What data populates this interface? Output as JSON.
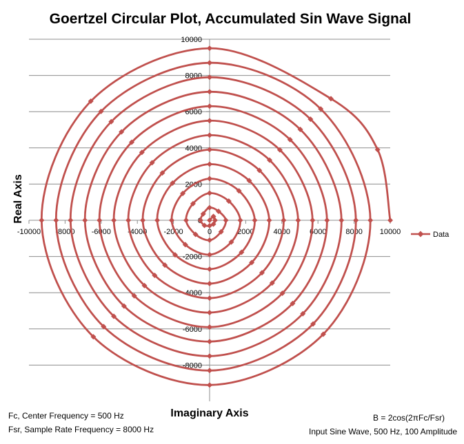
{
  "chart_data": {
    "type": "scatter",
    "title": "Goertzel Circular Plot, Accumulated Sin Wave Signal",
    "xlabel": "Imaginary Axis",
    "ylabel": "Real Axis",
    "xlim": [
      -10000,
      10000
    ],
    "ylim": [
      -10000,
      10000
    ],
    "x_ticks": [
      -10000,
      -8000,
      -6000,
      -4000,
      -2000,
      0,
      2000,
      4000,
      6000,
      8000,
      10000
    ],
    "y_ticks": [
      -8000,
      -6000,
      -4000,
      -2000,
      0,
      2000,
      4000,
      6000,
      8000,
      10000
    ],
    "grid": "horizontal",
    "legend_position": "right",
    "series": [
      {
        "name": "Data",
        "color": "#C0504D",
        "marker": "diamond",
        "points": [
          [
            0,
            0
          ],
          [
            212,
            212
          ],
          [
            300,
            0
          ],
          [
            212,
            -212
          ],
          [
            0,
            -300
          ],
          [
            -283,
            -283
          ],
          [
            -500,
            0
          ],
          [
            -354,
            354
          ],
          [
            0,
            700
          ],
          [
            495,
            495
          ],
          [
            900,
            0
          ],
          [
            636,
            -636
          ],
          [
            0,
            -1100
          ],
          [
            -778,
            -778
          ],
          [
            -1300,
            0
          ],
          [
            -919,
            919
          ],
          [
            0,
            1500
          ],
          [
            1061,
            1061
          ],
          [
            1700,
            0
          ],
          [
            1202,
            -1202
          ],
          [
            0,
            -1900
          ],
          [
            -1344,
            -1344
          ],
          [
            -2100,
            0
          ],
          [
            -1485,
            1485
          ],
          [
            0,
            2300
          ],
          [
            1626,
            1626
          ],
          [
            2500,
            0
          ],
          [
            1768,
            -1768
          ],
          [
            0,
            -2700
          ],
          [
            -1909,
            -1909
          ],
          [
            -2900,
            0
          ],
          [
            -2051,
            2051
          ],
          [
            0,
            3100
          ],
          [
            2192,
            2192
          ],
          [
            3300,
            0
          ],
          [
            2333,
            -2333
          ],
          [
            0,
            -3500
          ],
          [
            -2475,
            -2475
          ],
          [
            -3700,
            0
          ],
          [
            -2616,
            2616
          ],
          [
            0,
            3900
          ],
          [
            2758,
            2758
          ],
          [
            4100,
            0
          ],
          [
            2899,
            -2899
          ],
          [
            0,
            -4300
          ],
          [
            -3041,
            -3041
          ],
          [
            -4500,
            0
          ],
          [
            -3182,
            3182
          ],
          [
            0,
            4700
          ],
          [
            3323,
            3323
          ],
          [
            4900,
            0
          ],
          [
            3465,
            -3465
          ],
          [
            0,
            -5100
          ],
          [
            -3606,
            -3606
          ],
          [
            -5300,
            0
          ],
          [
            -3748,
            3748
          ],
          [
            0,
            5500
          ],
          [
            3889,
            3889
          ],
          [
            5700,
            0
          ],
          [
            4031,
            -4031
          ],
          [
            0,
            -5900
          ],
          [
            -4172,
            -4172
          ],
          [
            -6100,
            0
          ],
          [
            -4313,
            4313
          ],
          [
            0,
            6300
          ],
          [
            4455,
            4455
          ],
          [
            6500,
            0
          ],
          [
            4596,
            -4596
          ],
          [
            0,
            -6700
          ],
          [
            -4738,
            -4738
          ],
          [
            -6900,
            0
          ],
          [
            -4879,
            4879
          ],
          [
            0,
            7100
          ],
          [
            5020,
            5020
          ],
          [
            7300,
            0
          ],
          [
            5162,
            -5162
          ],
          [
            0,
            -7500
          ],
          [
            -5303,
            -5303
          ],
          [
            -7700,
            0
          ],
          [
            -5445,
            5445
          ],
          [
            0,
            7900
          ],
          [
            5586,
            5586
          ],
          [
            8100,
            0
          ],
          [
            5728,
            -5728
          ],
          [
            0,
            -8300
          ],
          [
            -5869,
            -5869
          ],
          [
            -8500,
            0
          ],
          [
            -6010,
            6010
          ],
          [
            0,
            8700
          ],
          [
            6152,
            6152
          ],
          [
            8900,
            0
          ],
          [
            6293,
            -6293
          ],
          [
            0,
            -9100
          ],
          [
            -6435,
            -6435
          ],
          [
            -9300,
            0
          ],
          [
            -6576,
            6576
          ],
          [
            0,
            9500
          ],
          [
            6718,
            6718
          ],
          [
            9300,
            3900
          ],
          [
            10000,
            0
          ]
        ]
      }
    ]
  },
  "notes": {
    "fc": "Fc, Center Frequency = 500 Hz",
    "fsr": "Fsr, Sample Rate Frequency = 8000  Hz",
    "b": "B = 2cos(2πFc/Fsr)",
    "input": "Input Sine Wave, 500 Hz, 100  Amplitude"
  }
}
